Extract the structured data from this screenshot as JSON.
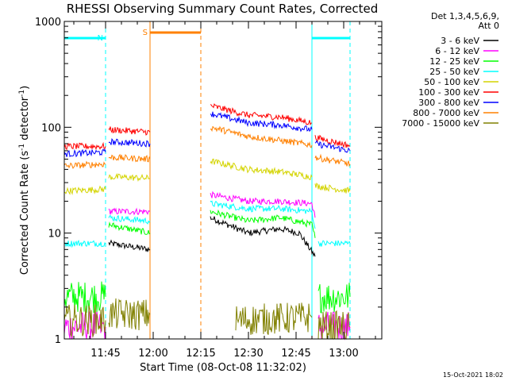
{
  "chart_data": {
    "type": "line",
    "title": "RHESSI Observing Summary Count Rates, Corrected",
    "xlabel": "Start Time (08-Oct-08 11:32:02)",
    "ylabel_main": "Corrected Count Rate (s",
    "ylabel_sup1": "-1",
    "ylabel_mid": " detector",
    "ylabel_sup2": "-1",
    "ylabel_end": ")",
    "yscale": "log",
    "ylim": [
      1,
      1000
    ],
    "xlim": [
      "11:32",
      "13:12"
    ],
    "x_ticks": [
      "11:45",
      "12:00",
      "12:15",
      "12:30",
      "12:45",
      "13:00"
    ],
    "y_ticks": [
      "1",
      "10",
      "100",
      "1000"
    ],
    "legend_header": [
      "Det 1,3,4,5,6,9,",
      "Att 0"
    ],
    "legend_position": "right",
    "timestamp": "15-Oct-2021 18:02",
    "flags": [
      {
        "label": "N",
        "color": "#00ffff",
        "spans": [
          [
            "11:32",
            "11:45"
          ],
          [
            "12:50",
            "13:02"
          ]
        ]
      },
      {
        "label": "S",
        "color": "#ff8000",
        "spans": [
          [
            "11:59",
            "12:15"
          ]
        ]
      }
    ],
    "gaps": [
      [
        "11:45",
        "11:59"
      ],
      [
        "12:15",
        "12:50"
      ]
    ],
    "series": [
      {
        "name": "3 - 6 keV",
        "color": "#000000",
        "segments": [
          [
            [
              "11:46",
              8
            ],
            [
              "11:59",
              7
            ]
          ],
          [
            [
              "12:18",
              14
            ],
            [
              "12:30",
              10
            ],
            [
              "12:40",
              11
            ],
            [
              "12:46",
              10
            ],
            [
              "12:51",
              6
            ]
          ]
        ]
      },
      {
        "name": "6 - 12 keV",
        "color": "#ff00ff",
        "segments": [
          [
            [
              "11:32",
              1.3
            ],
            [
              "11:45",
              1.3
            ]
          ],
          [
            [
              "11:46",
              16
            ],
            [
              "11:59",
              16
            ]
          ],
          [
            [
              "12:18",
              23
            ],
            [
              "12:30",
              20
            ],
            [
              "12:40",
              20
            ],
            [
              "12:50",
              19
            ],
            [
              "12:51",
              14
            ]
          ],
          [
            [
              "12:52",
              1.3
            ],
            [
              "13:02",
              1.3
            ]
          ]
        ]
      },
      {
        "name": "12 - 25 keV",
        "color": "#00ff00",
        "segments": [
          [
            [
              "11:32",
              2.5
            ],
            [
              "11:45",
              2.5
            ]
          ],
          [
            [
              "11:46",
              12
            ],
            [
              "11:59",
              10
            ]
          ],
          [
            [
              "12:18",
              16
            ],
            [
              "12:30",
              13
            ],
            [
              "12:40",
              14
            ],
            [
              "12:50",
              12
            ],
            [
              "12:51",
              9
            ]
          ],
          [
            [
              "12:52",
              2.5
            ],
            [
              "13:02",
              2.5
            ]
          ]
        ]
      },
      {
        "name": "25 - 50 keV",
        "color": "#00ffff",
        "segments": [
          [
            [
              "11:32",
              8
            ],
            [
              "11:45",
              8
            ]
          ],
          [
            [
              "11:46",
              14
            ],
            [
              "11:59",
              13
            ]
          ],
          [
            [
              "12:18",
              19
            ],
            [
              "12:30",
              17
            ],
            [
              "12:40",
              17
            ],
            [
              "12:50",
              16
            ],
            [
              "12:51",
              11
            ]
          ],
          [
            [
              "12:52",
              8
            ],
            [
              "13:02",
              8
            ]
          ]
        ]
      },
      {
        "name": "50 - 100 keV",
        "color": "#d4d400",
        "segments": [
          [
            [
              "11:32",
              25
            ],
            [
              "11:45",
              26
            ]
          ],
          [
            [
              "11:46",
              34
            ],
            [
              "11:59",
              33
            ]
          ],
          [
            [
              "12:18",
              48
            ],
            [
              "12:30",
              40
            ],
            [
              "12:40",
              38
            ],
            [
              "12:50",
              34
            ]
          ],
          [
            [
              "12:51",
              28
            ],
            [
              "13:02",
              25
            ]
          ]
        ]
      },
      {
        "name": "100 - 300 keV",
        "color": "#ff0000",
        "segments": [
          [
            [
              "11:32",
              66
            ],
            [
              "11:45",
              66
            ]
          ],
          [
            [
              "11:46",
              95
            ],
            [
              "11:59",
              90
            ]
          ],
          [
            [
              "12:18",
              160
            ],
            [
              "12:30",
              130
            ],
            [
              "12:40",
              125
            ],
            [
              "12:50",
              110
            ]
          ],
          [
            [
              "12:51",
              80
            ],
            [
              "13:02",
              67
            ]
          ]
        ]
      },
      {
        "name": "300 - 800 keV",
        "color": "#0000ff",
        "segments": [
          [
            [
              "11:32",
              56
            ],
            [
              "11:45",
              58
            ]
          ],
          [
            [
              "11:46",
              73
            ],
            [
              "11:59",
              70
            ]
          ],
          [
            [
              "12:18",
              135
            ],
            [
              "12:30",
              110
            ],
            [
              "12:40",
              105
            ],
            [
              "12:50",
              95
            ]
          ],
          [
            [
              "12:51",
              70
            ],
            [
              "13:02",
              60
            ]
          ]
        ]
      },
      {
        "name": "800 - 7000 keV",
        "color": "#ff8000",
        "segments": [
          [
            [
              "11:32",
              43
            ],
            [
              "11:45",
              45
            ]
          ],
          [
            [
              "11:46",
              52
            ],
            [
              "11:59",
              50
            ]
          ],
          [
            [
              "12:18",
              100
            ],
            [
              "12:30",
              82
            ],
            [
              "12:40",
              75
            ],
            [
              "12:50",
              68
            ]
          ],
          [
            [
              "12:51",
              52
            ],
            [
              "13:02",
              45
            ]
          ]
        ]
      },
      {
        "name": "7000 - 15000 keV",
        "color": "#808000",
        "segments": [
          [
            [
              "11:32",
              1.5
            ],
            [
              "11:45",
              1.5
            ]
          ],
          [
            [
              "11:46",
              1.7
            ],
            [
              "11:59",
              1.7
            ]
          ],
          [
            [
              "12:26",
              1.5
            ],
            [
              "12:50",
              1.6
            ]
          ],
          [
            [
              "12:52",
              1.3
            ],
            [
              "13:02",
              1.3
            ]
          ]
        ]
      }
    ]
  }
}
